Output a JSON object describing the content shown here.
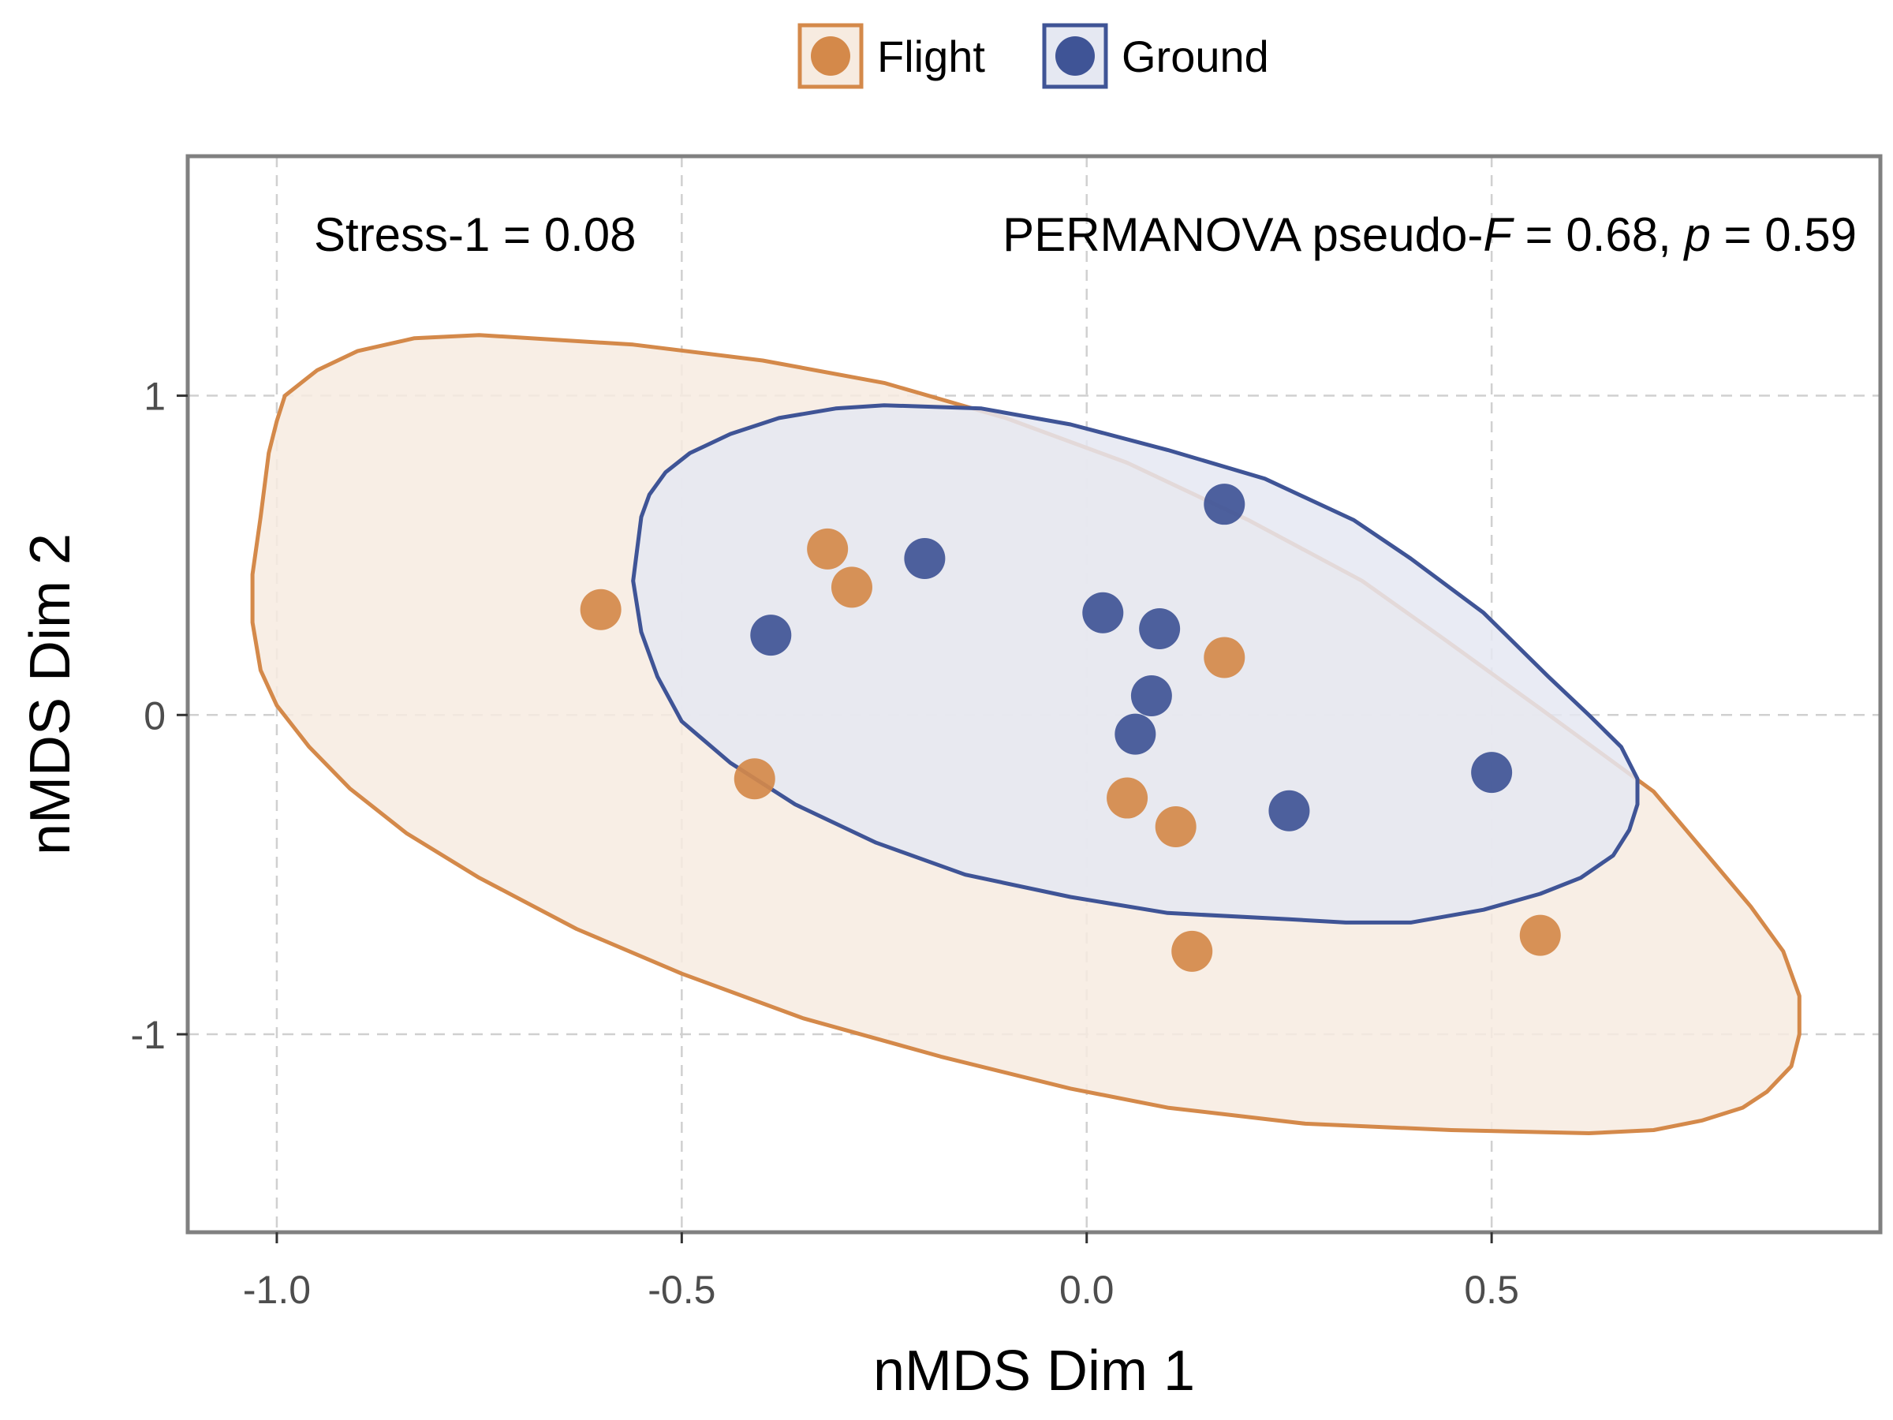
{
  "chart_data": {
    "type": "scatter",
    "xlabel": "nMDS Dim 1",
    "ylabel": "nMDS Dim 2",
    "xlim": [
      -1.11,
      0.98
    ],
    "ylim": [
      -1.62,
      1.75
    ],
    "x_ticks": [
      -1.0,
      -0.5,
      0.0,
      0.5
    ],
    "x_tick_labels": [
      "-1.0",
      "-0.5",
      "0.0",
      "0.5"
    ],
    "y_ticks": [
      -1,
      0,
      1
    ],
    "y_tick_labels": [
      "-1",
      "0",
      "1"
    ],
    "grid": true,
    "legend_position": "top",
    "annotation": {
      "stress": "Stress-1 = 0.08",
      "permanova_prefix": "PERMANOVA pseudo-",
      "permanova_f_symbol": "F",
      "permanova_f_value": " = 0.68, ",
      "permanova_p_symbol": "p",
      "permanova_p_value": " = 0.59"
    },
    "series": [
      {
        "name": "Flight",
        "color": "#D4894A",
        "fill": "#F7EBE0",
        "points": [
          [
            -0.6,
            0.33
          ],
          [
            -0.32,
            0.52
          ],
          [
            -0.29,
            0.4
          ],
          [
            -0.41,
            -0.2
          ],
          [
            0.17,
            0.18
          ],
          [
            0.05,
            -0.26
          ],
          [
            0.11,
            -0.35
          ],
          [
            0.13,
            -0.74
          ],
          [
            0.56,
            -0.69
          ]
        ],
        "ellipse": [
          [
            -1.01,
            0.82
          ],
          [
            -1.0,
            0.92
          ],
          [
            -0.99,
            1.0
          ],
          [
            -0.95,
            1.08
          ],
          [
            -0.9,
            1.14
          ],
          [
            -0.83,
            1.18
          ],
          [
            -0.75,
            1.19
          ],
          [
            -0.56,
            1.16
          ],
          [
            -0.4,
            1.11
          ],
          [
            -0.25,
            1.04
          ],
          [
            -0.1,
            0.93
          ],
          [
            0.05,
            0.79
          ],
          [
            0.2,
            0.61
          ],
          [
            0.34,
            0.42
          ],
          [
            0.44,
            0.24
          ],
          [
            0.56,
            0.02
          ],
          [
            0.7,
            -0.24
          ],
          [
            0.77,
            -0.45
          ],
          [
            0.82,
            -0.6
          ],
          [
            0.86,
            -0.74
          ],
          [
            0.88,
            -0.88
          ],
          [
            0.88,
            -1.0
          ],
          [
            0.87,
            -1.1
          ],
          [
            0.84,
            -1.18
          ],
          [
            0.81,
            -1.23
          ],
          [
            0.76,
            -1.27
          ],
          [
            0.7,
            -1.3
          ],
          [
            0.62,
            -1.31
          ],
          [
            0.45,
            -1.3
          ],
          [
            0.27,
            -1.28
          ],
          [
            0.1,
            -1.23
          ],
          [
            -0.02,
            -1.17
          ],
          [
            -0.18,
            -1.07
          ],
          [
            -0.35,
            -0.95
          ],
          [
            -0.5,
            -0.81
          ],
          [
            -0.63,
            -0.67
          ],
          [
            -0.75,
            -0.51
          ],
          [
            -0.84,
            -0.37
          ],
          [
            -0.91,
            -0.23
          ],
          [
            -0.96,
            -0.1
          ],
          [
            -1.0,
            0.03
          ],
          [
            -1.02,
            0.14
          ],
          [
            -1.03,
            0.29
          ],
          [
            -1.03,
            0.44
          ],
          [
            -1.02,
            0.62
          ]
        ]
      },
      {
        "name": "Ground",
        "color": "#3F5496",
        "fill": "#E5E8F2",
        "points": [
          [
            -0.39,
            0.25
          ],
          [
            -0.2,
            0.49
          ],
          [
            0.17,
            0.66
          ],
          [
            0.02,
            0.32
          ],
          [
            0.09,
            0.27
          ],
          [
            0.08,
            0.06
          ],
          [
            0.06,
            -0.06
          ],
          [
            0.25,
            -0.3
          ],
          [
            0.5,
            -0.18
          ]
        ],
        "ellipse": [
          [
            -0.55,
            0.62
          ],
          [
            -0.54,
            0.69
          ],
          [
            -0.52,
            0.76
          ],
          [
            -0.49,
            0.82
          ],
          [
            -0.44,
            0.88
          ],
          [
            -0.38,
            0.93
          ],
          [
            -0.31,
            0.96
          ],
          [
            -0.25,
            0.97
          ],
          [
            -0.13,
            0.96
          ],
          [
            -0.02,
            0.91
          ],
          [
            0.1,
            0.83
          ],
          [
            0.22,
            0.74
          ],
          [
            0.33,
            0.61
          ],
          [
            0.4,
            0.49
          ],
          [
            0.49,
            0.32
          ],
          [
            0.57,
            0.12
          ],
          [
            0.62,
            0.0
          ],
          [
            0.66,
            -0.1
          ],
          [
            0.68,
            -0.2
          ],
          [
            0.68,
            -0.28
          ],
          [
            0.67,
            -0.36
          ],
          [
            0.65,
            -0.44
          ],
          [
            0.61,
            -0.51
          ],
          [
            0.56,
            -0.56
          ],
          [
            0.49,
            -0.61
          ],
          [
            0.4,
            -0.65
          ],
          [
            0.32,
            -0.65
          ],
          [
            0.25,
            -0.64
          ],
          [
            0.1,
            -0.62
          ],
          [
            -0.02,
            -0.57
          ],
          [
            -0.15,
            -0.5
          ],
          [
            -0.26,
            -0.4
          ],
          [
            -0.36,
            -0.28
          ],
          [
            -0.44,
            -0.15
          ],
          [
            -0.5,
            -0.02
          ],
          [
            -0.53,
            0.12
          ],
          [
            -0.55,
            0.26
          ],
          [
            -0.56,
            0.42
          ]
        ]
      }
    ]
  }
}
